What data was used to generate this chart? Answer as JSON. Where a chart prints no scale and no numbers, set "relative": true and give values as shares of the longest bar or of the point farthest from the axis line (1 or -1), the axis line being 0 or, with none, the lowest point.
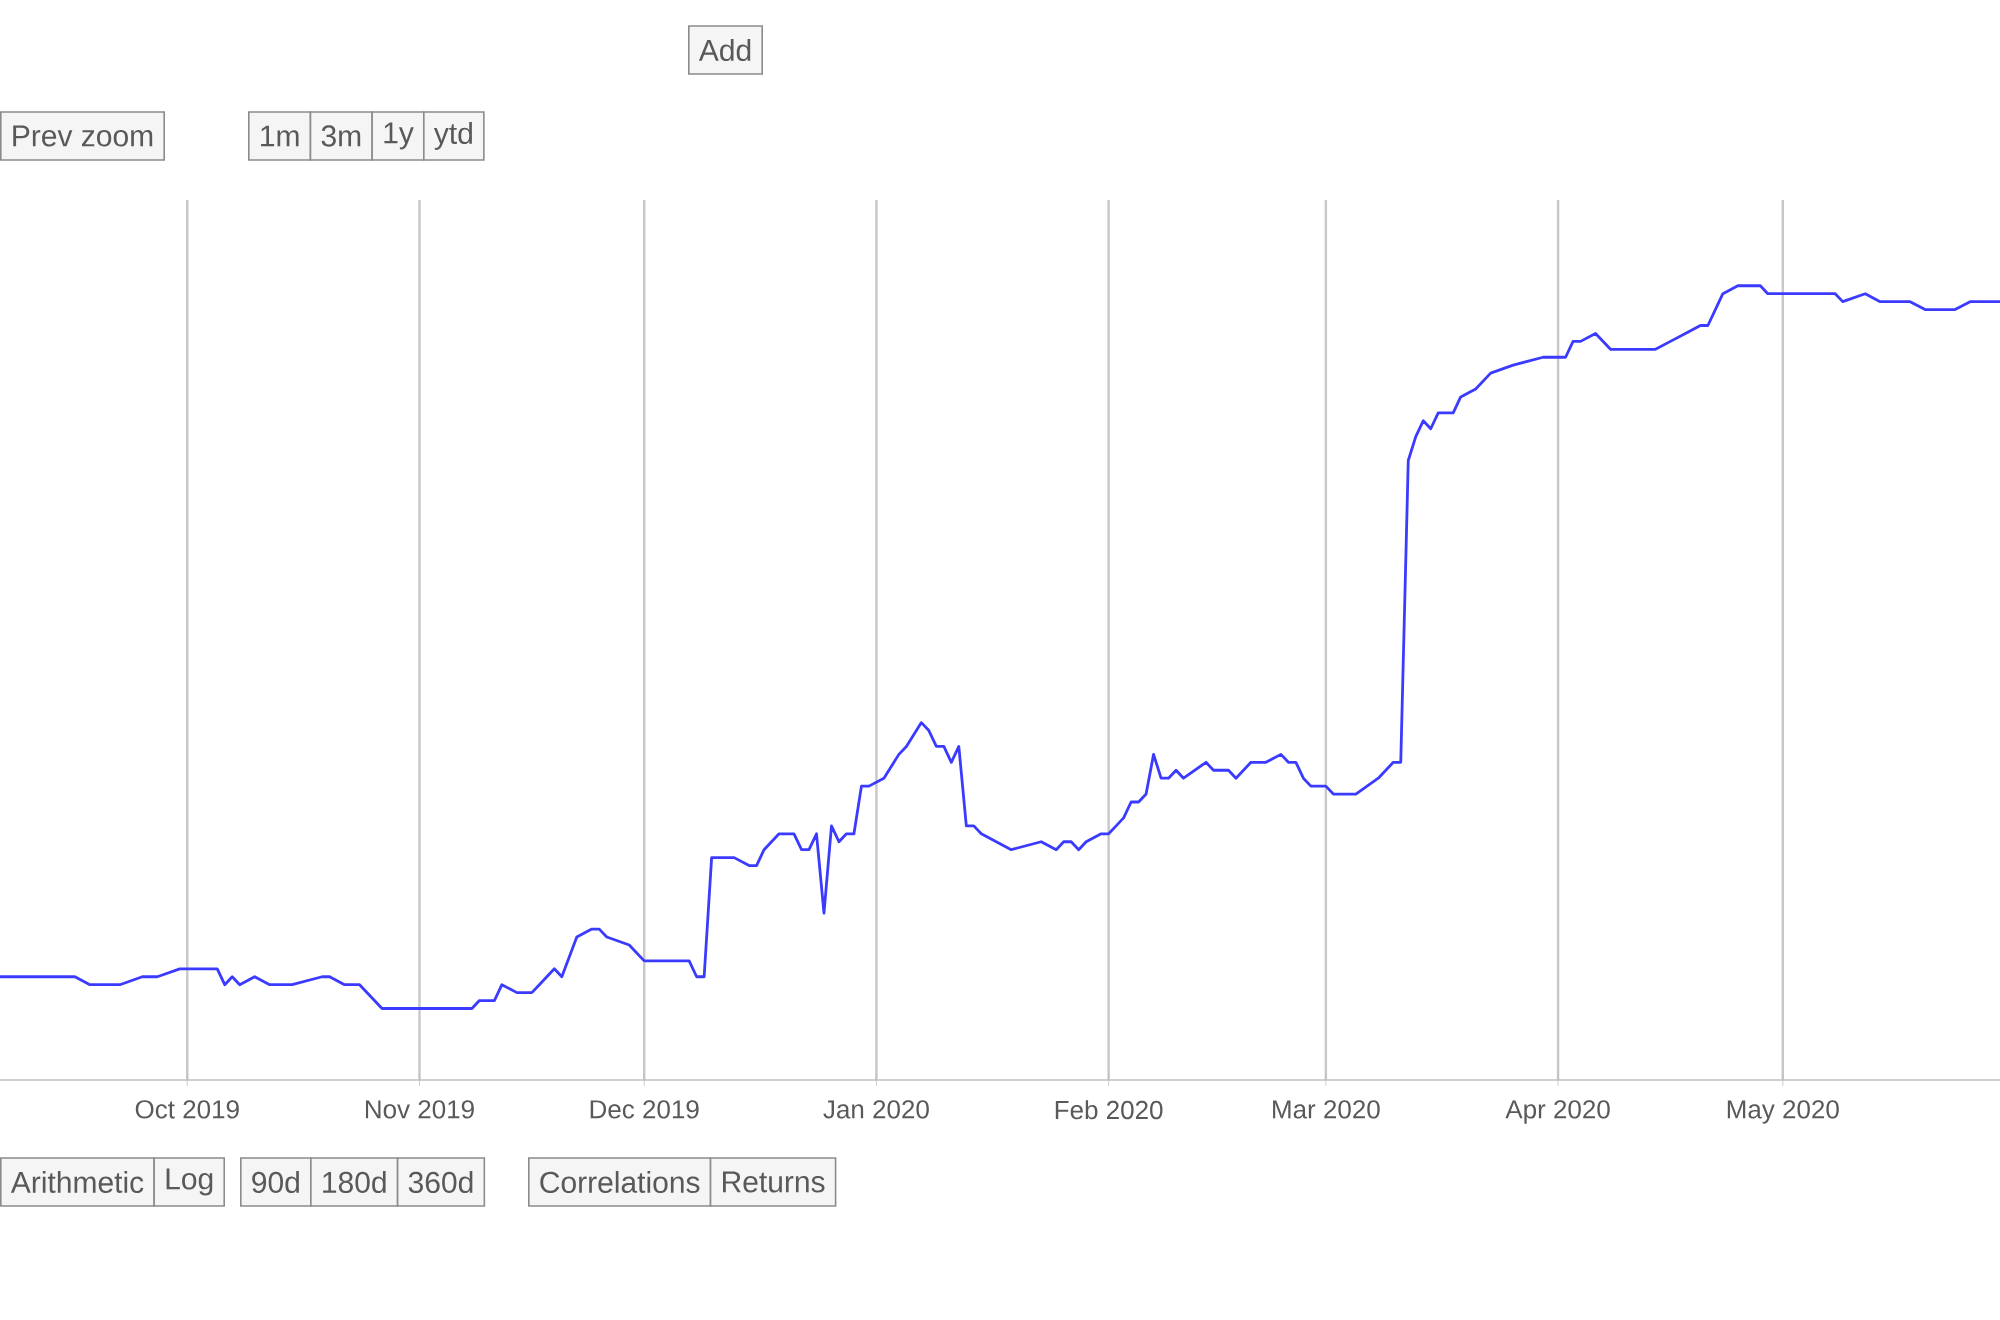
{
  "chart_data": {
    "type": "line",
    "relative": true,
    "grid": true,
    "xlim": [
      "2019-09-06",
      "2020-05-30"
    ],
    "xticks": [
      {
        "value": "2019-10-01",
        "label": "Oct 2019"
      },
      {
        "value": "2019-11-01",
        "label": "Nov 2019"
      },
      {
        "value": "2019-12-01",
        "label": "Dec 2019"
      },
      {
        "value": "2020-01-01",
        "label": "Jan 2020"
      },
      {
        "value": "2020-02-01",
        "label": "Feb 2020"
      },
      {
        "value": "2020-03-01",
        "label": "Mar 2020"
      },
      {
        "value": "2020-04-01",
        "label": "Apr 2020"
      },
      {
        "value": "2020-05-01",
        "label": "May 2020"
      }
    ],
    "annotations": [
      "Add",
      "Prev zoom",
      "1m",
      "3m",
      "1y",
      "ytd",
      "Arithmetic",
      "Log",
      "90d",
      "180d",
      "360d",
      "Correlations",
      "Returns"
    ],
    "series": [
      {
        "color": "#3b3bff",
        "x": [
          "2019-09-06",
          "2019-09-16",
          "2019-09-18",
          "2019-09-22",
          "2019-09-25",
          "2019-09-27",
          "2019-09-30",
          "2019-10-03",
          "2019-10-05",
          "2019-10-06",
          "2019-10-07",
          "2019-10-08",
          "2019-10-10",
          "2019-10-12",
          "2019-10-15",
          "2019-10-19",
          "2019-10-20",
          "2019-10-22",
          "2019-10-24",
          "2019-10-27",
          "2019-10-30",
          "2019-11-02",
          "2019-11-03",
          "2019-11-06",
          "2019-11-07",
          "2019-11-08",
          "2019-11-09",
          "2019-11-11",
          "2019-11-12",
          "2019-11-14",
          "2019-11-16",
          "2019-11-17",
          "2019-11-18",
          "2019-11-19",
          "2019-11-20",
          "2019-11-22",
          "2019-11-24",
          "2019-11-25",
          "2019-11-26",
          "2019-11-29",
          "2019-12-01",
          "2019-12-03",
          "2019-12-06",
          "2019-12-07",
          "2019-12-08",
          "2019-12-09",
          "2019-12-10",
          "2019-12-11",
          "2019-12-13",
          "2019-12-15",
          "2019-12-16",
          "2019-12-17",
          "2019-12-19",
          "2019-12-20",
          "2019-12-21",
          "2019-12-22",
          "2019-12-23",
          "2019-12-24",
          "2019-12-25",
          "2019-12-26",
          "2019-12-27",
          "2019-12-28",
          "2019-12-29",
          "2019-12-30",
          "2019-12-31",
          "2020-01-02",
          "2020-01-04",
          "2020-01-05",
          "2020-01-07",
          "2020-01-08",
          "2020-01-09",
          "2020-01-10",
          "2020-01-11",
          "2020-01-12",
          "2020-01-13",
          "2020-01-14",
          "2020-01-15",
          "2020-01-17",
          "2020-01-19",
          "2020-01-23",
          "2020-01-25",
          "2020-01-26",
          "2020-01-27",
          "2020-01-28",
          "2020-01-29",
          "2020-01-31",
          "2020-02-01",
          "2020-02-02",
          "2020-02-03",
          "2020-02-04",
          "2020-02-05",
          "2020-02-06",
          "2020-02-07",
          "2020-02-08",
          "2020-02-09",
          "2020-02-10",
          "2020-02-11",
          "2020-02-14",
          "2020-02-15",
          "2020-02-16",
          "2020-02-17",
          "2020-02-18",
          "2020-02-20",
          "2020-02-22",
          "2020-02-24",
          "2020-02-25",
          "2020-02-26",
          "2020-02-27",
          "2020-02-28",
          "2020-03-01",
          "2020-03-02",
          "2020-03-03",
          "2020-03-05",
          "2020-03-08",
          "2020-03-10",
          "2020-03-11",
          "2020-03-12",
          "2020-03-13",
          "2020-03-14",
          "2020-03-15",
          "2020-03-16",
          "2020-03-18",
          "2020-03-19",
          "2020-03-21",
          "2020-03-23",
          "2020-03-26",
          "2020-03-30",
          "2020-04-02",
          "2020-04-03",
          "2020-04-04",
          "2020-04-06",
          "2020-04-08",
          "2020-04-14",
          "2020-04-16",
          "2020-04-18",
          "2020-04-20",
          "2020-04-21",
          "2020-04-23",
          "2020-04-25",
          "2020-04-26",
          "2020-04-28",
          "2020-04-29",
          "2020-05-07",
          "2020-05-08",
          "2020-05-09",
          "2020-05-12",
          "2020-05-14",
          "2020-05-18",
          "2020-05-20",
          "2020-05-22",
          "2020-05-24",
          "2020-05-26",
          "2020-05-27",
          "2020-05-30"
        ],
        "values": [
          0.13,
          0.13,
          0.12,
          0.12,
          0.13,
          0.13,
          0.14,
          0.14,
          0.14,
          0.12,
          0.13,
          0.12,
          0.13,
          0.12,
          0.12,
          0.13,
          0.13,
          0.12,
          0.12,
          0.09,
          0.09,
          0.09,
          0.09,
          0.09,
          0.09,
          0.09,
          0.1,
          0.1,
          0.12,
          0.11,
          0.11,
          0.12,
          0.13,
          0.14,
          0.13,
          0.18,
          0.19,
          0.19,
          0.18,
          0.17,
          0.15,
          0.15,
          0.15,
          0.15,
          0.13,
          0.13,
          0.28,
          0.28,
          0.28,
          0.27,
          0.27,
          0.29,
          0.31,
          0.31,
          0.31,
          0.29,
          0.29,
          0.31,
          0.21,
          0.32,
          0.3,
          0.31,
          0.31,
          0.37,
          0.37,
          0.38,
          0.41,
          0.42,
          0.45,
          0.44,
          0.42,
          0.42,
          0.4,
          0.42,
          0.32,
          0.32,
          0.31,
          0.3,
          0.29,
          0.3,
          0.29,
          0.3,
          0.3,
          0.29,
          0.3,
          0.31,
          0.31,
          0.32,
          0.33,
          0.35,
          0.35,
          0.36,
          0.41,
          0.38,
          0.38,
          0.39,
          0.38,
          0.4,
          0.39,
          0.39,
          0.39,
          0.38,
          0.4,
          0.4,
          0.41,
          0.4,
          0.4,
          0.38,
          0.37,
          0.37,
          0.36,
          0.36,
          0.36,
          0.38,
          0.4,
          0.4,
          0.78,
          0.81,
          0.83,
          0.82,
          0.84,
          0.84,
          0.86,
          0.87,
          0.89,
          0.9,
          0.91,
          0.91,
          0.93,
          0.93,
          0.94,
          0.92,
          0.92,
          0.93,
          0.94,
          0.95,
          0.95,
          0.99,
          1,
          1,
          1,
          0.99,
          0.99,
          0.99,
          0.98,
          0.99,
          0.98,
          0.98,
          0.97,
          0.97,
          0.97,
          0.98,
          0.98,
          0.98
        ]
      }
    ]
  }
}
